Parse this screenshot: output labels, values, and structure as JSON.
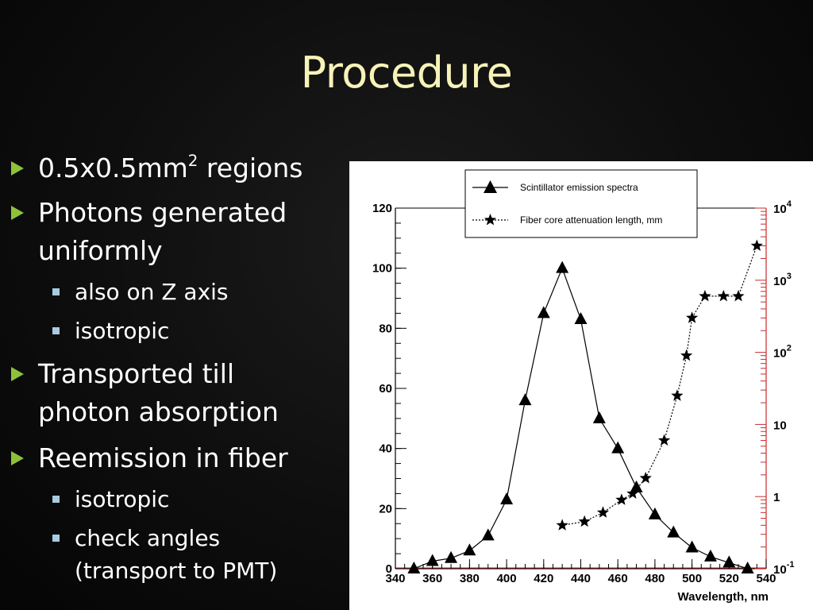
{
  "slide": {
    "title": "Procedure",
    "bullets": [
      {
        "level": 1,
        "text_main": "0.5x0.5mm",
        "sup": "2",
        "text_after": " regions"
      },
      {
        "level": 1,
        "lines": [
          "Photons generated",
          "uniformly"
        ]
      },
      {
        "level": 2,
        "lines": [
          "also on Z axis"
        ]
      },
      {
        "level": 2,
        "lines": [
          "isotropic"
        ]
      },
      {
        "level": 1,
        "lines": [
          "Transported till",
          "photon absorption"
        ]
      },
      {
        "level": 1,
        "lines": [
          "Reemission in fiber"
        ]
      },
      {
        "level": 2,
        "lines": [
          "isotropic"
        ]
      },
      {
        "level": 2,
        "lines": [
          "check angles",
          "(transport to PMT)"
        ]
      }
    ]
  },
  "colors": {
    "title": "#f7f3b8",
    "bullet_arrow": "#8ec13b",
    "sub_bullet_square": "#a7cbe0",
    "right_axis": "#cc2a2a"
  },
  "chart_data": {
    "type": "line",
    "xlabel": "Wavelength, nm",
    "ylabel": "",
    "xlim": [
      340,
      540
    ],
    "ylim_left": [
      0,
      120
    ],
    "ylim_right_log": [
      0.1,
      10000
    ],
    "x_ticks": [
      "340",
      "360",
      "380",
      "400",
      "420",
      "440",
      "460",
      "480",
      "500",
      "520",
      "540"
    ],
    "y_left_ticks": [
      "0",
      "20",
      "40",
      "60",
      "80",
      "100",
      "120"
    ],
    "y_right_ticks": [
      {
        "base": "10",
        "exp": "-1",
        "value": 0.1
      },
      {
        "base": "1",
        "exp": "",
        "value": 1
      },
      {
        "base": "10",
        "exp": "",
        "value": 10
      },
      {
        "base": "10",
        "exp": "2",
        "value": 100
      },
      {
        "base": "10",
        "exp": "3",
        "value": 1000
      },
      {
        "base": "10",
        "exp": "4",
        "value": 10000
      }
    ],
    "legend": {
      "position": "top",
      "entries": [
        "Scintillator emission spectra",
        "Fiber core attenuation length, mm"
      ]
    },
    "series": [
      {
        "name": "Scintillator emission spectra",
        "axis": "left",
        "marker": "triangle",
        "line": "solid",
        "x": [
          350,
          360,
          370,
          380,
          390,
          400,
          410,
          420,
          430,
          440,
          450,
          460,
          470,
          480,
          490,
          500,
          510,
          520,
          530
        ],
        "y": [
          0,
          2.5,
          3.5,
          6,
          11,
          23,
          56,
          85,
          100,
          83,
          50,
          40,
          27,
          18,
          12,
          7,
          4,
          2,
          0
        ]
      },
      {
        "name": "Fiber core attenuation length, mm",
        "axis": "right",
        "marker": "star",
        "line": "dotted",
        "x": [
          430,
          442,
          452,
          462,
          468,
          475,
          485,
          492,
          497,
          500,
          507,
          517,
          525,
          535
        ],
        "y": [
          0.4,
          0.45,
          0.6,
          0.9,
          1.1,
          1.8,
          6,
          25,
          90,
          300,
          600,
          600,
          600,
          3000
        ]
      }
    ]
  }
}
